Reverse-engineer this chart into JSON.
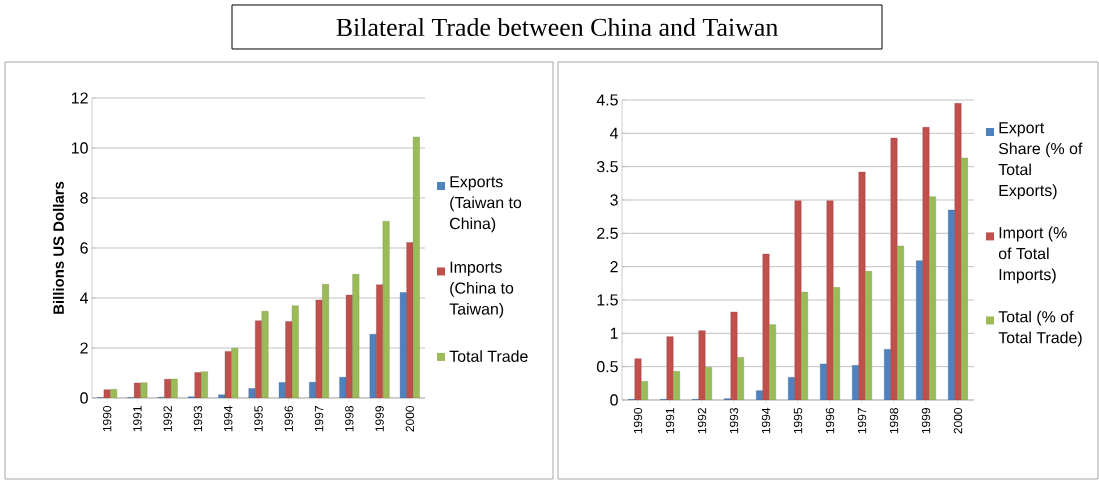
{
  "chart_data": [
    {
      "type": "bar",
      "title": "Bilateral Trade between China and Taiwan",
      "ylabel": "Billions US Dollars",
      "categories": [
        "1990",
        "1991",
        "1992",
        "1993",
        "1994",
        "1995",
        "1996",
        "1997",
        "1998",
        "1999",
        "2000"
      ],
      "series": [
        {
          "name": "Exports (Taiwan to China)",
          "color": "#4f81bd",
          "values": [
            0.02,
            0.02,
            0.03,
            0.05,
            0.13,
            0.38,
            0.62,
            0.63,
            0.83,
            2.55,
            4.22
          ]
        },
        {
          "name": "Imports (China to Taiwan)",
          "color": "#c0504d",
          "values": [
            0.33,
            0.6,
            0.75,
            1.02,
            1.86,
            3.09,
            3.06,
            3.92,
            4.12,
            4.53,
            6.22
          ]
        },
        {
          "name": "Total Trade",
          "color": "#9bbb59",
          "values": [
            0.35,
            0.61,
            0.76,
            1.05,
            1.99,
            3.47,
            3.69,
            4.55,
            4.95,
            7.07,
            10.44
          ]
        }
      ],
      "ylim": [
        0,
        12
      ],
      "yticks": [
        0,
        2,
        4,
        6,
        8,
        10,
        12
      ],
      "grid": "y",
      "legend": "right"
    },
    {
      "type": "bar",
      "categories": [
        "1990",
        "1991",
        "1992",
        "1993",
        "1994",
        "1995",
        "1996",
        "1997",
        "1998",
        "1999",
        "2000"
      ],
      "series": [
        {
          "name": "Export Share (% of Total Exports)",
          "color": "#4f81bd",
          "values": [
            0.01,
            0.01,
            0.01,
            0.02,
            0.14,
            0.34,
            0.54,
            0.52,
            0.76,
            2.09,
            2.85
          ]
        },
        {
          "name": "Import (% of Total Imports)",
          "color": "#c0504d",
          "values": [
            0.62,
            0.95,
            1.04,
            1.32,
            2.19,
            2.99,
            2.99,
            3.42,
            3.93,
            4.09,
            4.45
          ]
        },
        {
          "name": "Total (% of Total Trade)",
          "color": "#9bbb59",
          "values": [
            0.28,
            0.43,
            0.49,
            0.64,
            1.13,
            1.62,
            1.69,
            1.93,
            2.31,
            3.05,
            3.63
          ]
        }
      ],
      "ylim": [
        0,
        4.5
      ],
      "yticks": [
        0,
        0.5,
        1,
        1.5,
        2,
        2.5,
        3,
        3.5,
        4,
        4.5
      ],
      "grid": "y",
      "legend": "right"
    }
  ]
}
